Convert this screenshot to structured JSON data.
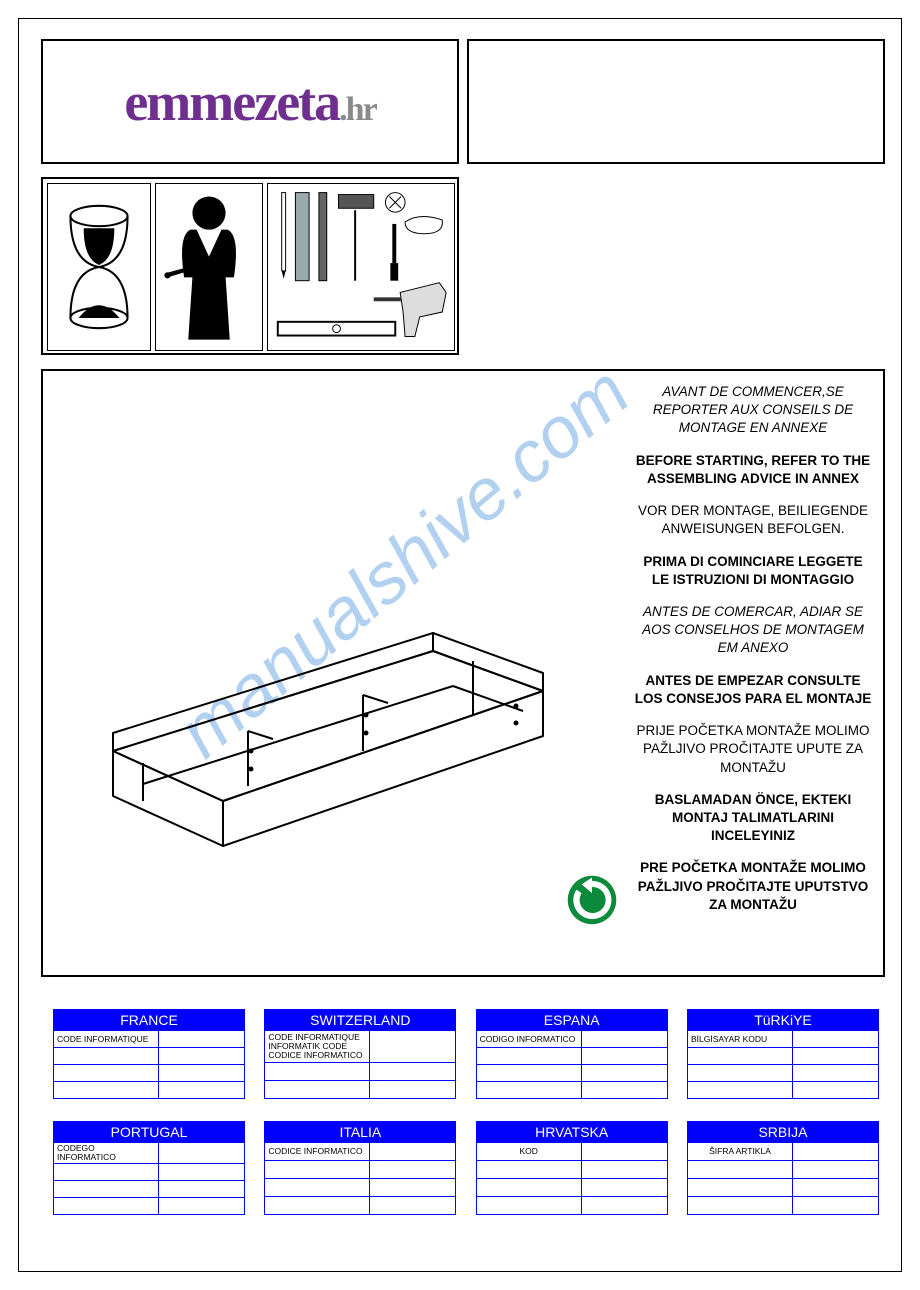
{
  "logo": {
    "main": "emmezeta",
    "suffix": ".hr",
    "main_color": "#6e2f8e",
    "suffix_color": "#8a8a8a"
  },
  "watermark": {
    "text": "manualshive.com",
    "color": "#7fb3e8",
    "opacity": 0.6
  },
  "recycle": {
    "bg": "#0a8a3a",
    "arrow": "#ffffff"
  },
  "instructions": [
    {
      "text": "AVANT DE COMMENCER,SE REPORTER AUX CONSEILS DE MONTAGE EN ANNEXE",
      "bold": false,
      "italic": true
    },
    {
      "text": "BEFORE STARTING, REFER TO THE ASSEMBLING ADVICE IN ANNEX",
      "bold": true,
      "italic": false
    },
    {
      "text": "VOR DER MONTAGE, BEILIEGENDE ANWEISUNGEN BEFOLGEN.",
      "bold": false,
      "italic": false
    },
    {
      "text": "PRIMA DI COMINCIARE LEGGETE LE ISTRUZIONI DI MONTAGGIO",
      "bold": true,
      "italic": false
    },
    {
      "text": "ANTES DE COMERCAR, ADIAR SE AOS CONSELHOS DE MONTAGEM EM ANEXO",
      "bold": false,
      "italic": true
    },
    {
      "text": "ANTES DE EMPEZAR CONSULTE LOS CONSEJOS PARA EL MONTAJE",
      "bold": true,
      "italic": false
    },
    {
      "text": "PRIJE POČETKA MONTAŽE MOLIMO PAŽLJIVO PROČITAJTE UPUTE ZA MONTAŽU",
      "bold": false,
      "italic": false
    },
    {
      "text": "BASLAMADAN ÖNCE, EKTEKI MONTAJ TALIMATLARINI INCELEYINIZ",
      "bold": true,
      "italic": false
    },
    {
      "text": "PRE POČETKA MONTAŽE MOLIMO PAŽLJIVO PROČITAJTE UPUTSTVO ZA MONTAŽU",
      "bold": true,
      "italic": false
    }
  ],
  "countries": {
    "header_bg": "#0000ff",
    "border": "#0000ff",
    "rows": [
      [
        {
          "name": "FRANCE",
          "label": "CODE INFORMATIQUE",
          "value": "",
          "extra_rows": 3
        },
        {
          "name": "SWITZERLAND",
          "label": "CODE INFORMATIQUE\nINFORMATIK CODE\nCODICE INFORMATICO",
          "value": "",
          "extra_rows": 2
        },
        {
          "name": "ESPANA",
          "label": "CODIGO INFORMATICO",
          "value": "",
          "extra_rows": 3
        },
        {
          "name": "TüRKiYE",
          "label": "BİLGİSAYAR KODU",
          "value": "",
          "extra_rows": 3
        }
      ],
      [
        {
          "name": "PORTUGAL",
          "label": "CODEGO INFORMATICO",
          "value": "",
          "extra_rows": 3
        },
        {
          "name": "ITALIA",
          "label": "CODICE INFORMATICO",
          "value": "",
          "extra_rows": 3
        },
        {
          "name": "HRVATSKA",
          "label": "KOD",
          "label_centered": true,
          "value": "",
          "extra_rows": 3
        },
        {
          "name": "SRBIJA",
          "label": "ŠIFRA ARTIKLA",
          "label_centered": true,
          "value": "",
          "extra_rows": 3
        }
      ]
    ]
  }
}
